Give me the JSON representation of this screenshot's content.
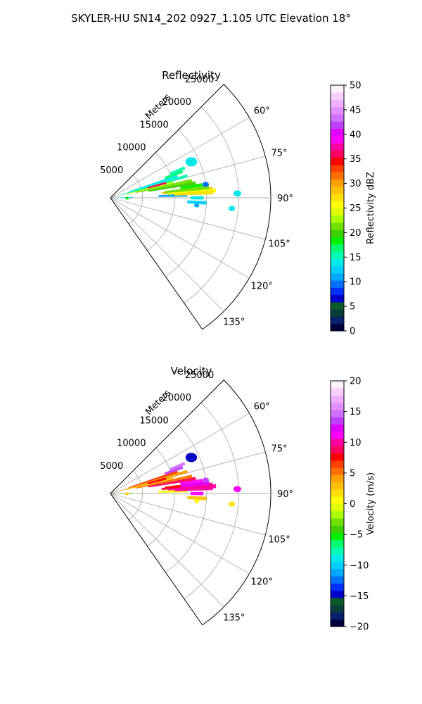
{
  "figure": {
    "title": "SKYLER-HU  SN14_202  0927_1.105 UTC Elevation 18°"
  },
  "chart_data": [
    {
      "type": "polar-sector-radar",
      "title": "Reflectivity",
      "radial_label": "Meters",
      "r_ticks": [
        "5000",
        "10000",
        "15000",
        "20000",
        "25000"
      ],
      "theta_ticks": [
        "60°",
        "75°",
        "90°",
        "105°",
        "120°",
        "135°"
      ],
      "r_max": 25000,
      "theta_range": [
        45,
        145
      ],
      "colorbar": {
        "label": "Reflectivity dBZ",
        "range": [
          0,
          50
        ],
        "ticks": [
          "0",
          "5",
          "10",
          "15",
          "20",
          "25",
          "30",
          "35",
          "40",
          "45",
          "50"
        ],
        "colors": [
          "#000040",
          "#08216b",
          "#0b3d3d",
          "#0a5a2a",
          "#0000c8",
          "#0030ff",
          "#0070ff",
          "#00a8ff",
          "#00d0ff",
          "#00e8e8",
          "#00ffb0",
          "#00ff70",
          "#00f000",
          "#40d000",
          "#70e000",
          "#a8ff00",
          "#e0ff00",
          "#ffff00",
          "#ffe000",
          "#ffc000",
          "#ffa000",
          "#ff7000",
          "#ff4000",
          "#ff0000",
          "#ff0060",
          "#ff00a0",
          "#ff00ff",
          "#e000ff",
          "#c040ff",
          "#d070ff",
          "#e090ff",
          "#f0b0ff",
          "#f8d0ff",
          "#fff0ff"
        ]
      },
      "echoes": [
        {
          "theta": 85,
          "r0": 8000,
          "r1": 16000,
          "v": 28
        },
        {
          "theta": 86,
          "r0": 9000,
          "r1": 16500,
          "v": 25
        },
        {
          "theta": 84,
          "r0": 8500,
          "r1": 15000,
          "v": 22
        },
        {
          "theta": 82,
          "r0": 11000,
          "r1": 14500,
          "v": 19
        },
        {
          "theta": 80,
          "r0": 6000,
          "r1": 13500,
          "v": 20
        },
        {
          "theta": 78,
          "r0": 4000,
          "r1": 13000,
          "v": 22
        },
        {
          "theta": 76,
          "r0": 2500,
          "r1": 10000,
          "v": 23
        },
        {
          "theta": 74,
          "r0": 1500,
          "r1": 12500,
          "v": 16
        },
        {
          "theta": 72,
          "r0": 3000,
          "r1": 11000,
          "v": 14
        },
        {
          "theta": 70,
          "r0": 9000,
          "r1": 12000,
          "v": 17
        },
        {
          "theta": 68,
          "r0": 10000,
          "r1": 12500,
          "v": 15
        },
        {
          "theta": 88,
          "r0": 7500,
          "r1": 12000,
          "v": 11
        },
        {
          "theta": 89,
          "r0": 500,
          "r1": 3500,
          "v": 12
        },
        {
          "theta": 84,
          "r0": 11000,
          "r1": 15500,
          "v": 21
        },
        {
          "theta": 87,
          "r0": 10000,
          "r1": 16000,
          "v": 27
        },
        {
          "theta": 90,
          "r0": 12500,
          "r1": 14500,
          "v": 14
        },
        {
          "theta": 93,
          "r0": 12000,
          "r1": 15000,
          "v": 13
        },
        {
          "theta": 75,
          "r0": 6000,
          "r1": 9000,
          "v": 36
        }
      ],
      "cells": [
        {
          "theta": 66,
          "r": 13800,
          "w": 1800,
          "v": 14
        },
        {
          "theta": 82,
          "r": 15000,
          "w": 1000,
          "v": 10
        },
        {
          "theta": 88,
          "r": 19800,
          "w": 1200,
          "v": 14
        },
        {
          "theta": 95,
          "r": 19000,
          "w": 1000,
          "v": 14
        },
        {
          "theta": 95,
          "r": 13500,
          "w": 800,
          "v": 11
        },
        {
          "theta": 91,
          "r": 2600,
          "w": 500,
          "v": 18
        }
      ]
    },
    {
      "type": "polar-sector-radar",
      "title": "Velocity",
      "radial_label": "Meters",
      "r_ticks": [
        "5000",
        "10000",
        "15000",
        "20000",
        "25000"
      ],
      "theta_ticks": [
        "60°",
        "75°",
        "90°",
        "105°",
        "120°",
        "135°"
      ],
      "r_max": 25000,
      "theta_range": [
        45,
        145
      ],
      "colorbar": {
        "label": "Velocity (m/s)",
        "range": [
          -20,
          20
        ],
        "ticks": [
          "−20",
          "−15",
          "−10",
          "−5",
          "0",
          "5",
          "10",
          "15",
          "20"
        ],
        "colors": [
          "#000040",
          "#08216b",
          "#0b3d3d",
          "#0a5a2a",
          "#0000c8",
          "#0030ff",
          "#0070ff",
          "#00a8ff",
          "#00d0ff",
          "#00e8e8",
          "#00ffb0",
          "#00ff70",
          "#00f000",
          "#40d000",
          "#70e000",
          "#a8ff00",
          "#e0ff00",
          "#ffff00",
          "#ffe000",
          "#ffc000",
          "#ffa000",
          "#ff7000",
          "#ff4000",
          "#ff0000",
          "#ff0060",
          "#ff00a0",
          "#ff00ff",
          "#e000ff",
          "#c040ff",
          "#d070ff",
          "#e090ff",
          "#f0b0ff",
          "#f8d0ff",
          "#fff0ff"
        ]
      },
      "echoes": [
        {
          "theta": 85,
          "r0": 8000,
          "r1": 16000,
          "v": 9
        },
        {
          "theta": 86,
          "r0": 9000,
          "r1": 16500,
          "v": 10
        },
        {
          "theta": 84,
          "r0": 8500,
          "r1": 15000,
          "v": 8
        },
        {
          "theta": 82,
          "r0": 11000,
          "r1": 14500,
          "v": 11
        },
        {
          "theta": 80,
          "r0": 6000,
          "r1": 13500,
          "v": 9
        },
        {
          "theta": 78,
          "r0": 4000,
          "r1": 13000,
          "v": 5
        },
        {
          "theta": 76,
          "r0": 2500,
          "r1": 10000,
          "v": 3
        },
        {
          "theta": 74,
          "r0": 1500,
          "r1": 12500,
          "v": 4
        },
        {
          "theta": 72,
          "r0": 3000,
          "r1": 11000,
          "v": 6
        },
        {
          "theta": 70,
          "r0": 9000,
          "r1": 12000,
          "v": 14
        },
        {
          "theta": 68,
          "r0": 10000,
          "r1": 12500,
          "v": 15
        },
        {
          "theta": 88,
          "r0": 7500,
          "r1": 12000,
          "v": 1
        },
        {
          "theta": 89,
          "r0": 500,
          "r1": 3500,
          "v": -3
        },
        {
          "theta": 84,
          "r0": 11000,
          "r1": 15500,
          "v": 12
        },
        {
          "theta": 87,
          "r0": 10000,
          "r1": 16000,
          "v": 10
        },
        {
          "theta": 90,
          "r0": 12500,
          "r1": 14500,
          "v": 11
        },
        {
          "theta": 93,
          "r0": 12000,
          "r1": 15000,
          "v": 3
        },
        {
          "theta": 75,
          "r0": 6000,
          "r1": 9000,
          "v": 8
        }
      ],
      "cells": [
        {
          "theta": 66,
          "r": 13800,
          "w": 1800,
          "v": -15
        },
        {
          "theta": 82,
          "r": 15000,
          "w": 1000,
          "v": 14
        },
        {
          "theta": 88,
          "r": 19800,
          "w": 1200,
          "v": 11
        },
        {
          "theta": 95,
          "r": 19000,
          "w": 1000,
          "v": 2
        },
        {
          "theta": 95,
          "r": 13500,
          "w": 800,
          "v": 1
        },
        {
          "theta": 91,
          "r": 2600,
          "w": 500,
          "v": 3
        }
      ]
    }
  ]
}
